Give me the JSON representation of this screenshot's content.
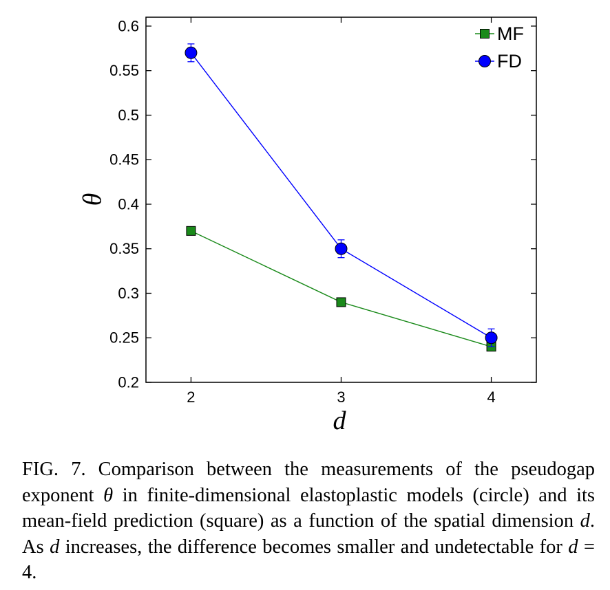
{
  "chart_data": {
    "type": "line",
    "x": [
      2,
      3,
      4
    ],
    "xlabel": "d",
    "ylabel": "θ",
    "xticks": [
      2,
      3,
      4
    ],
    "yticks": [
      "0.2",
      "0.25",
      "0.3",
      "0.35",
      "0.4",
      "0.45",
      "0.5",
      "0.55",
      "0.6"
    ],
    "xlim": [
      1.7,
      4.3
    ],
    "ylim": [
      0.2,
      0.61
    ],
    "legend_position": "top-right",
    "grid": false,
    "series": [
      {
        "name": "MF",
        "marker": "square",
        "color": "#1a8a1a",
        "values": [
          0.37,
          0.29,
          0.24
        ],
        "errors": [
          0,
          0,
          0
        ]
      },
      {
        "name": "FD",
        "marker": "circle",
        "color": "#0000ff",
        "values": [
          0.57,
          0.35,
          0.25
        ],
        "errors": [
          0.01,
          0.01,
          0.01
        ]
      }
    ]
  },
  "caption": {
    "label": "FIG. 7.",
    "part1": "Comparison between the measurements of the pseudogap exponent ",
    "sym_theta": "θ",
    "part2": " in finite-dimensional elastoplastic models (circle) and its mean-field prediction (square) as a function of the spatial dimension ",
    "sym_d1": "d",
    "part3": ". As ",
    "sym_d2": "d",
    "part4": " increases, the difference becomes smaller and undetectable for ",
    "sym_d3": "d",
    "part5": " = 4."
  }
}
